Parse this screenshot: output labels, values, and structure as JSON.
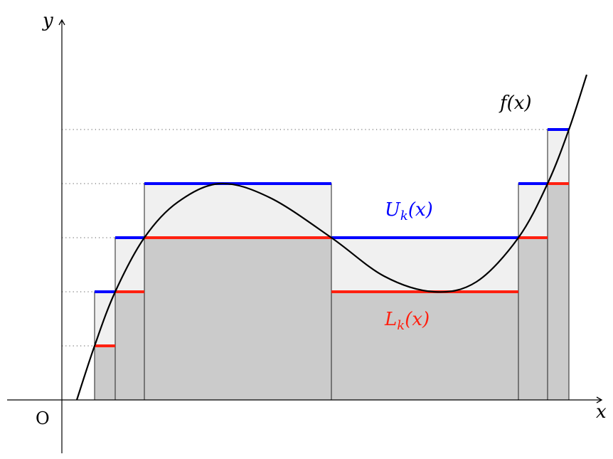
{
  "axes": {
    "x_label": "x",
    "y_label": "y",
    "origin_label": "O"
  },
  "curve": {
    "label": "f(x)"
  },
  "upper": {
    "label_main": "U",
    "label_sub": "k",
    "label_arg": "(x)",
    "color": "#0000ff"
  },
  "lower": {
    "label_main": "L",
    "label_sub": "k",
    "label_arg": "(x)",
    "color": "#ff2010"
  },
  "fills": {
    "upper_band": "#f0f0f0",
    "lower_region": "#cbcbcb"
  }
}
